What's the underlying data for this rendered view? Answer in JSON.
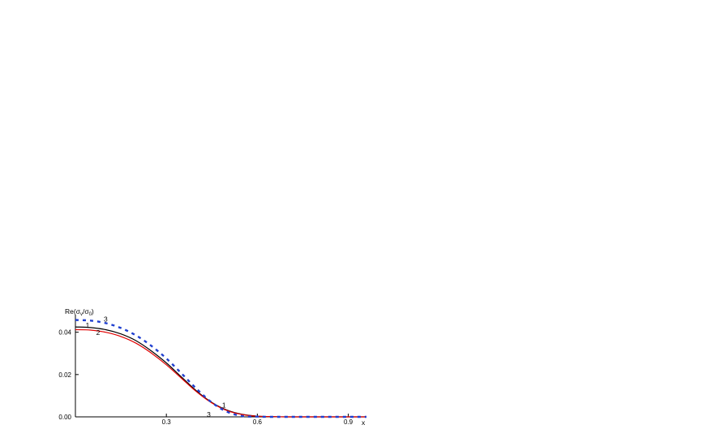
{
  "chart_data": {
    "type": "line",
    "ylabel": {
      "base": "Re(σ",
      "sub1": "v",
      "mid": "/σ",
      "sub2": "0",
      "end": ")"
    },
    "xlabel": "x",
    "xlim": [
      0.0,
      0.96
    ],
    "ylim": [
      0.0,
      0.046
    ],
    "x_ticks": [
      {
        "value": 0.3,
        "label": "0.3"
      },
      {
        "value": 0.6,
        "label": "0.6"
      },
      {
        "value": 0.9,
        "label": "0.9"
      }
    ],
    "y_ticks": [
      {
        "value": 0.0,
        "label": "0.00"
      },
      {
        "value": 0.02,
        "label": "0.02"
      },
      {
        "value": 0.04,
        "label": "0.04"
      }
    ],
    "grid": false,
    "legend": "none",
    "series": [
      {
        "color": "#000000",
        "style": "solid",
        "x": [
          0.0,
          0.05,
          0.1,
          0.15,
          0.2,
          0.25,
          0.3,
          0.35,
          0.4,
          0.45,
          0.5,
          0.55,
          0.6,
          0.65,
          0.7,
          0.8,
          0.96
        ],
        "y": [
          0.0425,
          0.0422,
          0.0412,
          0.0392,
          0.036,
          0.0312,
          0.0255,
          0.0188,
          0.0122,
          0.0068,
          0.0032,
          0.0012,
          0.0003,
          0.0001,
          0.0,
          0.0,
          0.0
        ]
      },
      {
        "color": "#e00000",
        "style": "solid",
        "x": [
          0.0,
          0.05,
          0.1,
          0.15,
          0.2,
          0.25,
          0.3,
          0.35,
          0.4,
          0.45,
          0.5,
          0.55,
          0.6,
          0.65,
          0.7,
          0.8,
          0.96
        ],
        "y": [
          0.0412,
          0.041,
          0.04,
          0.038,
          0.0348,
          0.0302,
          0.0246,
          0.0182,
          0.0118,
          0.0066,
          0.003,
          0.0011,
          0.0003,
          0.0001,
          0.0,
          0.0,
          0.0
        ]
      },
      {
        "color": "#1f3fd0",
        "style": "dashed",
        "x": [
          0.0,
          0.05,
          0.1,
          0.15,
          0.2,
          0.25,
          0.3,
          0.35,
          0.4,
          0.45,
          0.5,
          0.55,
          0.6,
          0.65,
          0.7,
          0.8,
          0.96
        ],
        "y": [
          0.0458,
          0.0455,
          0.0443,
          0.042,
          0.0385,
          0.0336,
          0.0276,
          0.0205,
          0.0132,
          0.0068,
          0.0024,
          0.0004,
          0.0001,
          0.0,
          0.0,
          0.0,
          0.0
        ]
      }
    ],
    "annotations": [
      {
        "text": "3",
        "x": 0.1,
        "y": 0.0462
      },
      {
        "text": "1",
        "x": 0.04,
        "y": 0.0433
      },
      {
        "text": "2",
        "x": 0.075,
        "y": 0.0398
      },
      {
        "text": "1",
        "x": 0.49,
        "y": 0.0055
      },
      {
        "text": "3",
        "x": 0.44,
        "y": 0.0012
      }
    ]
  }
}
